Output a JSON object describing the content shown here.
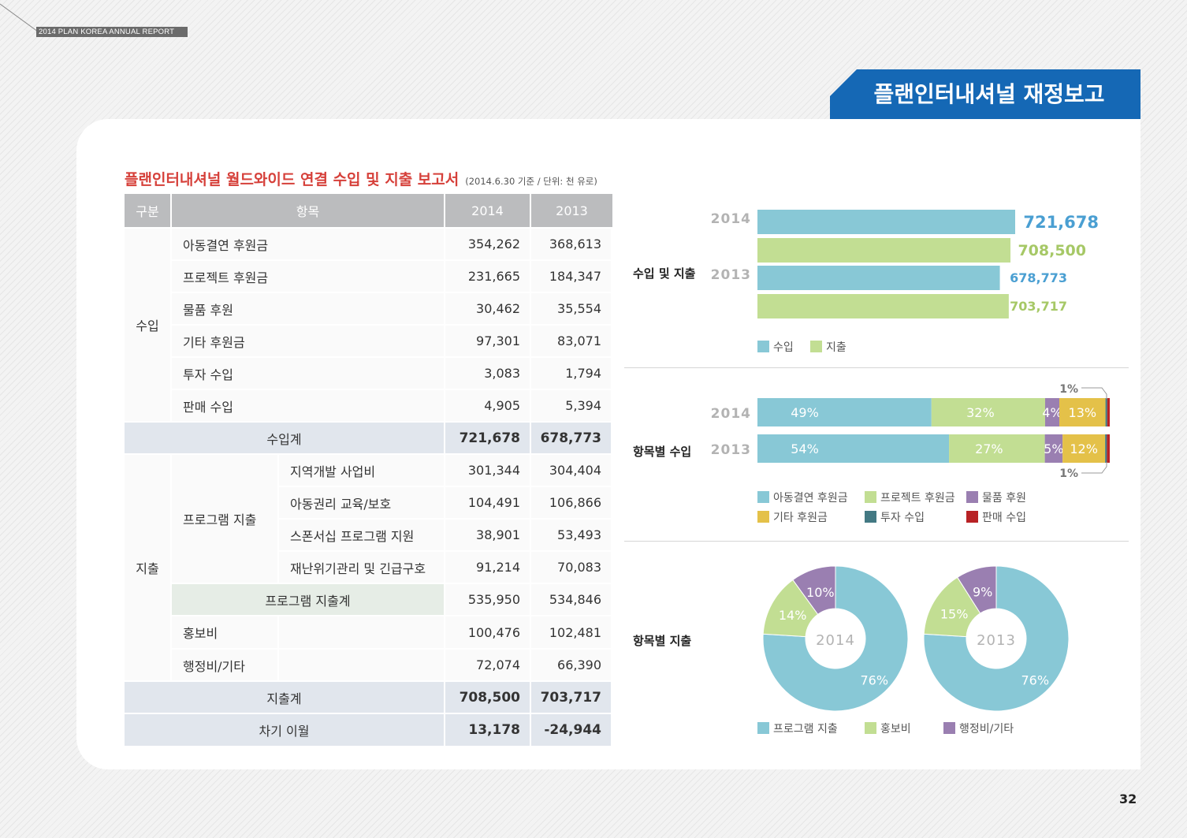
{
  "header": {
    "report_label": "2014 PLAN KOREA ANNUAL REPORT",
    "banner_title": "플랜인터내셔널 재정보고"
  },
  "section": {
    "title": "플랜인터내셔널 월드와이드 연결 수입 및 지출 보고서",
    "subtitle": "(2014.6.30 기준 / 단위: 천 유로)"
  },
  "table": {
    "headers": {
      "category": "구분",
      "item": "항목",
      "y2014": "2014",
      "y2013": "2013"
    },
    "income_label": "수입",
    "income_rows": [
      {
        "item": "아동결연 후원금",
        "v2014": "354,262",
        "v2013": "368,613"
      },
      {
        "item": "프로젝트 후원금",
        "v2014": "231,665",
        "v2013": "184,347"
      },
      {
        "item": "물품 후원",
        "v2014": "30,462",
        "v2013": "35,554"
      },
      {
        "item": "기타 후원금",
        "v2014": "97,301",
        "v2013": "83,071"
      },
      {
        "item": "투자 수입",
        "v2014": "3,083",
        "v2013": "1,794"
      },
      {
        "item": "판매 수입",
        "v2014": "4,905",
        "v2013": "5,394"
      }
    ],
    "income_total": {
      "item": "수입계",
      "v2014": "721,678",
      "v2013": "678,773"
    },
    "expense_label": "지출",
    "program_label": "프로그램 지출",
    "program_rows": [
      {
        "item": "지역개발 사업비",
        "v2014": "301,344",
        "v2013": "304,404"
      },
      {
        "item": "아동권리 교육/보호",
        "v2014": "104,491",
        "v2013": "106,866"
      },
      {
        "item": "스폰서십 프로그램 지원",
        "v2014": "38,901",
        "v2013": "53,493"
      },
      {
        "item": "재난위기관리 및 긴급구호",
        "v2014": "91,214",
        "v2013": "70,083"
      }
    ],
    "program_total": {
      "item": "프로그램 지출계",
      "v2014": "535,950",
      "v2013": "534,846"
    },
    "other_rows": [
      {
        "item": "홍보비",
        "v2014": "100,476",
        "v2013": "102,481"
      },
      {
        "item": "행정비/기타",
        "v2014": "72,074",
        "v2013": "66,390"
      }
    ],
    "expense_total": {
      "item": "지출계",
      "v2014": "708,500",
      "v2013": "703,717"
    },
    "carryover": {
      "item": "차기 이월",
      "v2014": "13,178",
      "v2013": "-24,944"
    }
  },
  "colors": {
    "income": "#88c8d6",
    "expense": "#c2de93",
    "goods": "#9a7fb1",
    "other": "#e4c149",
    "invest": "#437983",
    "sales": "#b82225",
    "banner": "#1568b5",
    "title_red": "#d6403a"
  },
  "chart_data": [
    {
      "type": "bar",
      "title": "수입 및 지출",
      "categories": [
        "2014",
        "2013"
      ],
      "series": [
        {
          "name": "수입",
          "values": [
            721678,
            678773
          ],
          "color": "#88c8d6",
          "labels": [
            "721,678",
            "678,773"
          ],
          "label_color": "#4a9fd2"
        },
        {
          "name": "지출",
          "values": [
            708500,
            703717
          ],
          "color": "#c2de93",
          "labels": [
            "708,500",
            "703,717"
          ],
          "label_color": "#a6c866"
        }
      ],
      "xlim": [
        0,
        721678
      ]
    },
    {
      "type": "bar",
      "title": "항목별 수입",
      "stacked": true,
      "categories": [
        "2014",
        "2013"
      ],
      "series": [
        {
          "name": "아동결연 후원금",
          "values": [
            49,
            54
          ],
          "color": "#88c8d6",
          "labels": [
            "49%",
            "54%"
          ]
        },
        {
          "name": "프로젝트 후원금",
          "values": [
            32,
            27
          ],
          "color": "#c2de93",
          "labels": [
            "32%",
            "27%"
          ]
        },
        {
          "name": "물품 후원",
          "values": [
            4,
            5
          ],
          "color": "#9a7fb1",
          "labels": [
            "4%",
            "5%"
          ]
        },
        {
          "name": "기타 후원금",
          "values": [
            13,
            12
          ],
          "color": "#e4c149",
          "labels": [
            "13%",
            "12%"
          ]
        },
        {
          "name": "투자 수입",
          "values": [
            0.5,
            0.5
          ],
          "color": "#437983",
          "labels": [
            "",
            ""
          ]
        },
        {
          "name": "판매 수입",
          "values": [
            0.7,
            0.8
          ],
          "color": "#b82225",
          "labels": [
            "",
            ""
          ]
        }
      ],
      "annotations": [
        "1%",
        "1%"
      ]
    },
    {
      "type": "pie",
      "title": "항목별 지출",
      "donut": true,
      "charts": [
        {
          "center_label": "2014",
          "values": [
            76,
            14,
            10
          ],
          "labels": [
            "76%",
            "14%",
            "10%"
          ]
        },
        {
          "center_label": "2013",
          "values": [
            76,
            15,
            9
          ],
          "labels": [
            "76%",
            "15%",
            "9%"
          ]
        }
      ],
      "legend": [
        {
          "name": "프로그램 지출",
          "color": "#88c8d6"
        },
        {
          "name": "홍보비",
          "color": "#c2de93"
        },
        {
          "name": "행정비/기타",
          "color": "#9a7fb1"
        }
      ]
    }
  ],
  "page_number": "32"
}
